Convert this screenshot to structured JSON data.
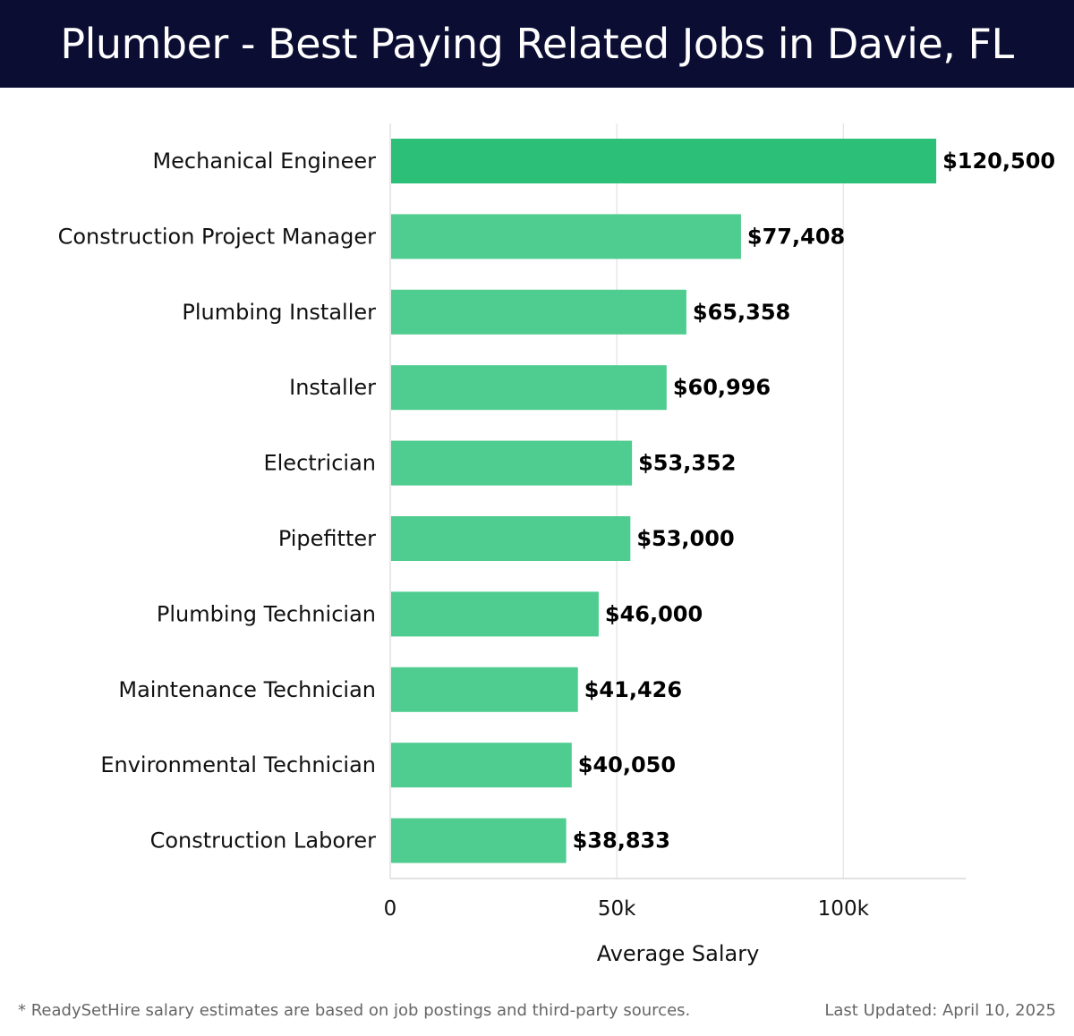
{
  "header": {
    "title": "Plumber - Best Paying Related Jobs in Davie, FL"
  },
  "chart_data": {
    "type": "bar",
    "orientation": "horizontal",
    "categories": [
      "Mechanical Engineer",
      "Construction Project Manager",
      "Plumbing Installer",
      "Installer",
      "Electrician",
      "Pipefitter",
      "Plumbing Technician",
      "Maintenance Technician",
      "Environmental Technician",
      "Construction Laborer"
    ],
    "values": [
      120500,
      77408,
      65358,
      60996,
      53352,
      53000,
      46000,
      41426,
      40050,
      38833
    ],
    "value_labels": [
      "$120,500",
      "$77,408",
      "$65,358",
      "$60,996",
      "$53,352",
      "$53,000",
      "$46,000",
      "$41,426",
      "$40,050",
      "$38,833"
    ],
    "xlabel": "Average Salary",
    "ylabel": "",
    "xlim": [
      0,
      127000
    ],
    "xticks": [
      0,
      50000,
      100000
    ],
    "xtick_labels": [
      "0",
      "50k",
      "100k"
    ],
    "grid": true,
    "colors": {
      "top_bar": "#2bbf78",
      "bars": "#4fcc8f",
      "grid": "#e3e3e3"
    }
  },
  "footer": {
    "note": "* ReadySetHire salary estimates are based on job postings and third-party sources.",
    "updated": "Last Updated: April 10, 2025"
  }
}
